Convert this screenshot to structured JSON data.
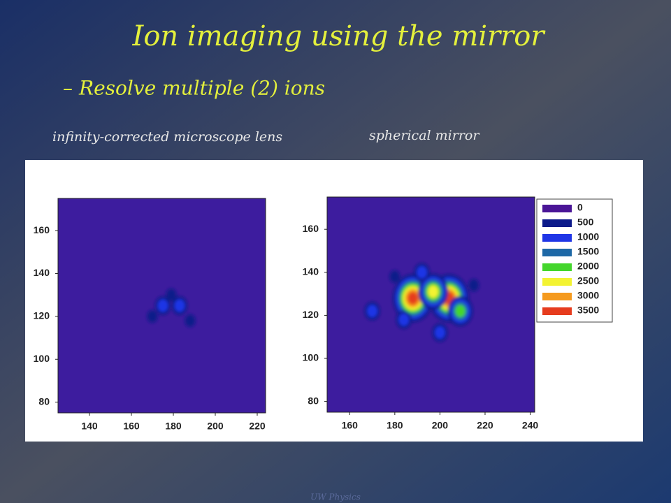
{
  "slide": {
    "title": "Ion imaging using the mirror",
    "bullet_marker": "–",
    "bullet": "Resolve multiple (2) ions",
    "footer": "UW Physics"
  },
  "captions": [
    "infinity-corrected microscope lens",
    "spherical mirror"
  ],
  "chart_data": [
    {
      "type": "heatmap",
      "xlim": [
        125,
        224
      ],
      "ylim": [
        75,
        175
      ],
      "xticks": [
        140,
        160,
        180,
        200,
        220
      ],
      "yticks": [
        80,
        100,
        120,
        140,
        160
      ],
      "background": "#3d1c9e",
      "points": {
        "x": [
          175,
          183,
          179,
          170,
          188
        ],
        "y": [
          125,
          125,
          130,
          120,
          118
        ],
        "values": [
          1000,
          1000,
          500,
          500,
          500
        ]
      }
    },
    {
      "type": "heatmap",
      "xlim": [
        150,
        242
      ],
      "ylim": [
        75,
        175
      ],
      "xticks": [
        160,
        180,
        200,
        220,
        240
      ],
      "yticks": [
        80,
        100,
        120,
        140,
        160
      ],
      "background": "#3d1c9e",
      "points": {
        "x": [
          188,
          204,
          197,
          209,
          184,
          170,
          192,
          215,
          200,
          180
        ],
        "y": [
          128,
          128,
          131,
          122,
          118,
          122,
          140,
          134,
          112,
          138
        ],
        "values": [
          3500,
          3500,
          2500,
          2000,
          1000,
          1000,
          1000,
          500,
          1000,
          500
        ]
      },
      "legend": {
        "levels": [
          0,
          500,
          1000,
          1500,
          2000,
          2500,
          3000,
          3500
        ],
        "colors": [
          "#4a1596",
          "#0c1a8a",
          "#1f35e6",
          "#1d68a6",
          "#44d62c",
          "#f3f332",
          "#f59a1e",
          "#e63c1e"
        ]
      }
    }
  ]
}
